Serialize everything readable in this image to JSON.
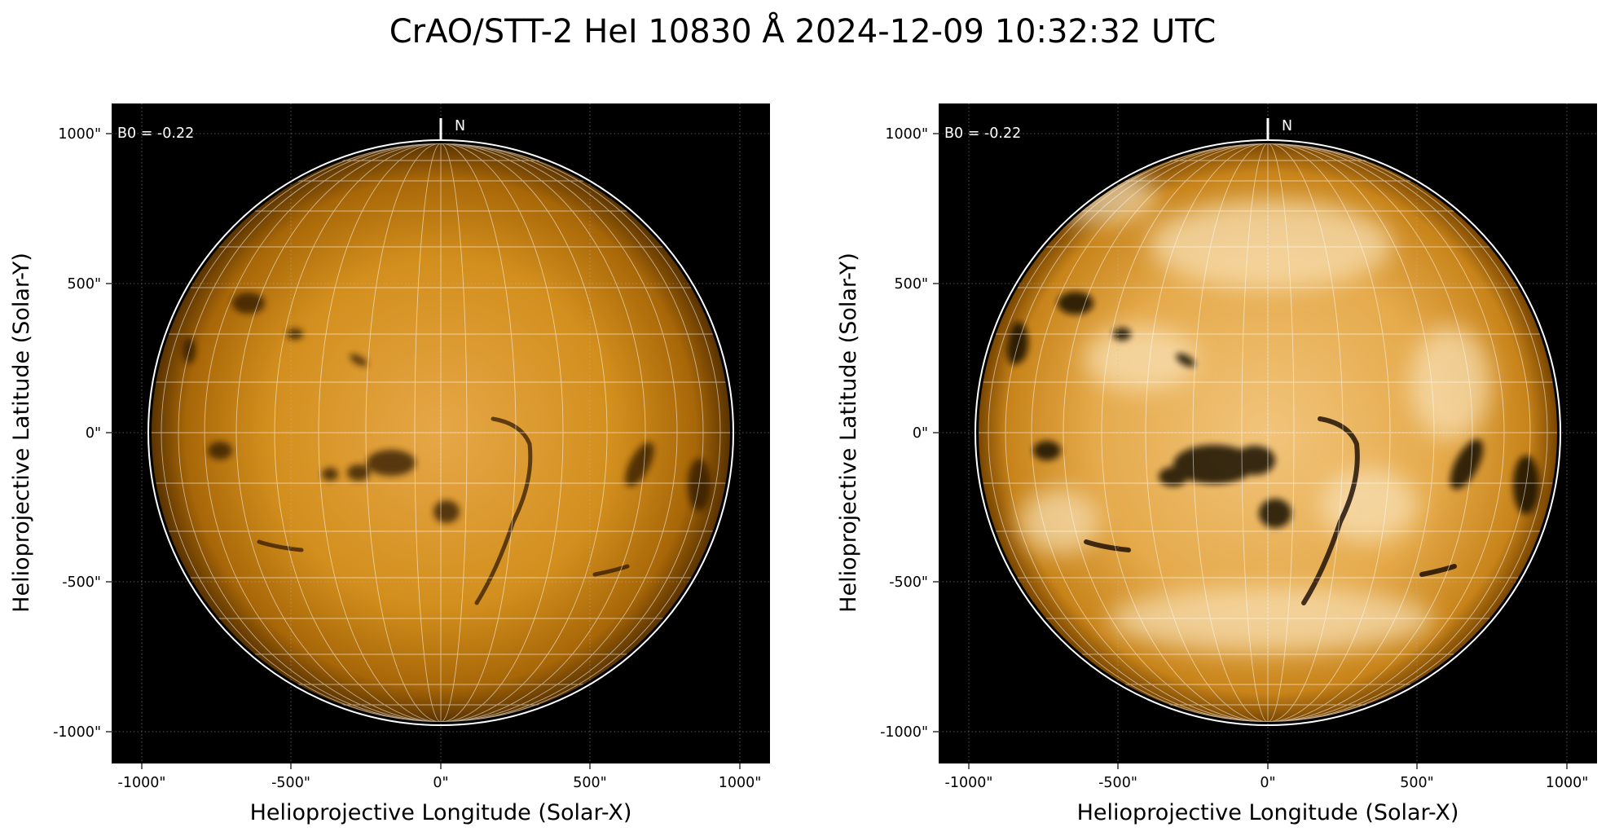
{
  "figure": {
    "title": "CrAO/STT-2 HeI 10830 Å 2024-12-09 10:32:32 UTC"
  },
  "panels": [
    {
      "name": "left",
      "style": "normal",
      "xlabel": "Helioprojective Longitude (Solar-X)",
      "ylabel": "Helioprojective Latitude (Solar-Y)",
      "annotation": "B0 = -0.22",
      "north_label": "N",
      "xticks": [
        "-1000\"",
        "-500\"",
        "0\"",
        "500\"",
        "1000\""
      ],
      "yticks": [
        "1000\"",
        "500\"",
        "0\"",
        "-500\"",
        "-1000\""
      ]
    },
    {
      "name": "right",
      "style": "enhanced",
      "xlabel": "Helioprojective Longitude (Solar-X)",
      "ylabel": "Helioprojective Latitude (Solar-Y)",
      "annotation": "B0 = -0.22",
      "north_label": "N",
      "xticks": [
        "-1000\"",
        "-500\"",
        "0\"",
        "500\"",
        "1000\""
      ],
      "yticks": [
        "1000\"",
        "500\"",
        "0\"",
        "-500\"",
        "-1000\""
      ]
    }
  ],
  "colors": {
    "background": "#000000",
    "disk_center": "#e3a043",
    "disk_mid": "#c9820f",
    "disk_limb": "#5a3300",
    "limb_circle": "#ffffff",
    "grid": "#ffffff"
  }
}
